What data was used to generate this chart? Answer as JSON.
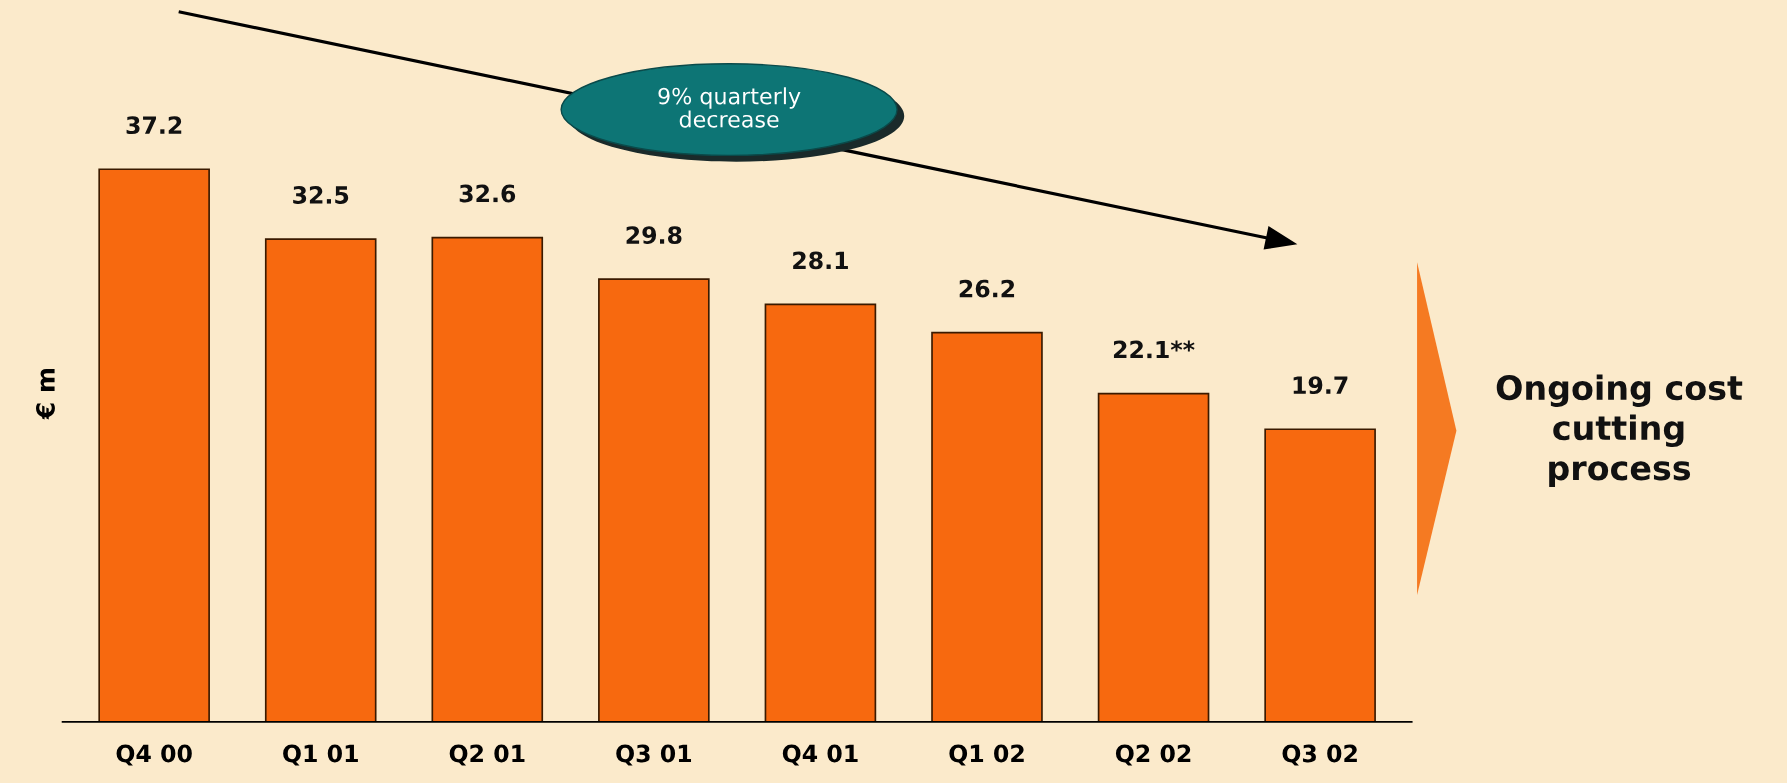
{
  "chart_data": {
    "type": "bar",
    "ylabel": "€ m",
    "categories": [
      "Q4 00",
      "Q1 01",
      "Q2 01",
      "Q3 01",
      "Q4 01",
      "Q1 02",
      "Q2 02",
      "Q3 02"
    ],
    "values": [
      37.2,
      32.5,
      32.6,
      29.8,
      28.1,
      26.2,
      22.1,
      19.7
    ],
    "value_labels": [
      "37.2",
      "32.5",
      "32.6",
      "29.8",
      "28.1",
      "26.2",
      "22.1**",
      "19.7"
    ],
    "color": "#f7690f",
    "annotations": [
      "9% quarterly decrease",
      "Ongoing cost cutting process"
    ],
    "tick_labels": "x",
    "grid": false
  }
}
